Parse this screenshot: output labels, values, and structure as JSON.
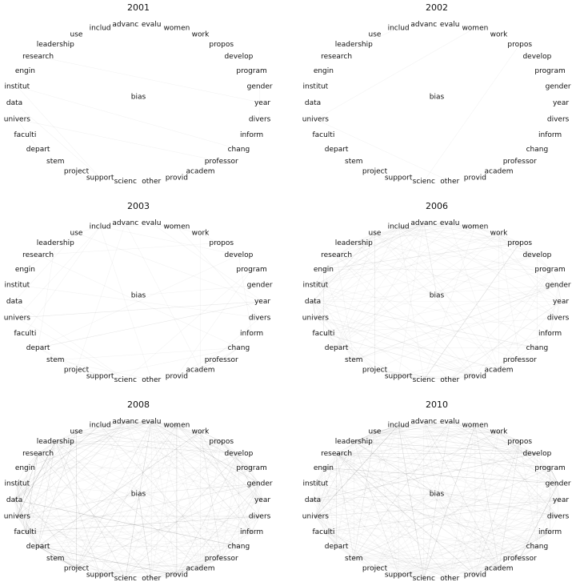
{
  "panels": [
    {
      "title": "2001"
    },
    {
      "title": "2002"
    },
    {
      "title": "2003"
    },
    {
      "title": "2006"
    },
    {
      "title": "2008"
    },
    {
      "title": "2010"
    }
  ],
  "node_labels": [
    "evalu",
    "women",
    "work",
    "propos",
    "develop",
    "program",
    "gender",
    "year",
    "divers",
    "inform",
    "chang",
    "professor",
    "academ",
    "provid",
    "other",
    "scienc",
    "support",
    "project",
    "stem",
    "depart",
    "faculti",
    "univers",
    "data",
    "institut",
    "engin",
    "research",
    "leadership",
    "use",
    "includ",
    "advanc"
  ],
  "center_label": "bias"
}
